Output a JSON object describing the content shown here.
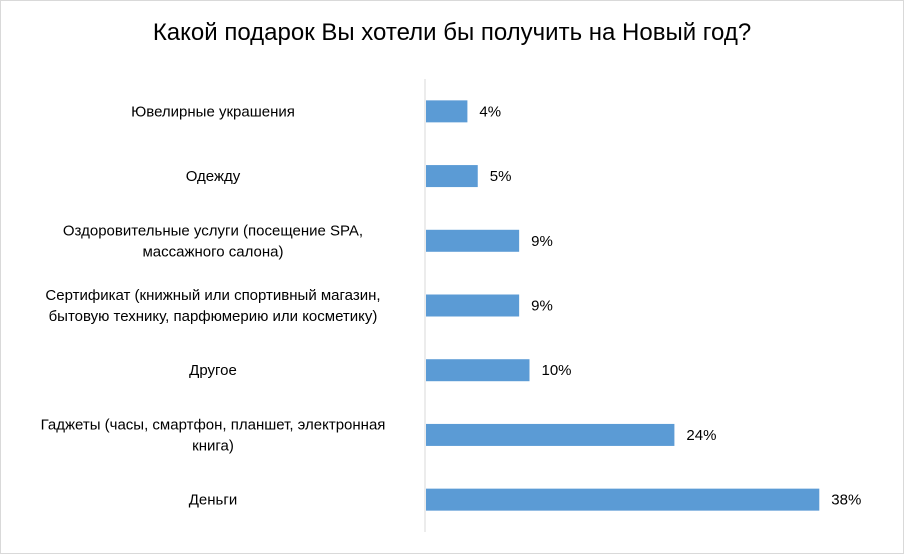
{
  "chart_data": {
    "type": "bar",
    "orientation": "horizontal",
    "title": "Какой подарок Вы хотели бы получить на Новый год?",
    "categories": [
      [
        "Ювелирные украшения"
      ],
      [
        "Одежду"
      ],
      [
        "Оздоровительные услуги (посещение SPA,",
        "массажного салона)"
      ],
      [
        "Сертификат (книжный или спортивный магазин,",
        "бытовую технику, парфюмерию или косметику)"
      ],
      [
        "Другое"
      ],
      [
        "Гаджеты (часы, смартфон, планшет, электронная",
        "книга)"
      ],
      [
        "Деньги"
      ]
    ],
    "values": [
      4,
      5,
      9,
      9,
      10,
      24,
      38
    ],
    "value_labels": [
      "4%",
      "5%",
      "9%",
      "9%",
      "10%",
      "24%",
      "38%"
    ],
    "unit": "%",
    "xlim": [
      0,
      40
    ],
    "grid": false,
    "legend": "none",
    "bar_color": "#5B9BD5",
    "axis_color": "#d9d9d9"
  }
}
